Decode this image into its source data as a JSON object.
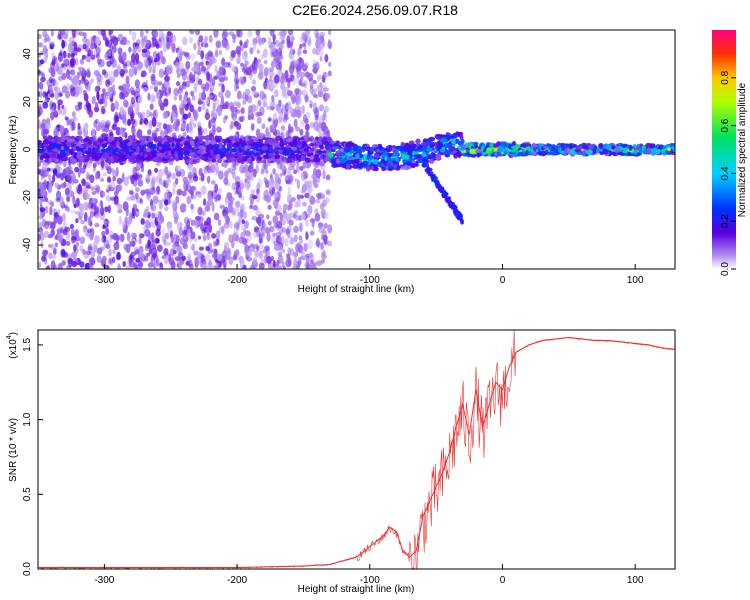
{
  "title": "C2E6.2024.256.09.07.R18",
  "colors": {
    "snr_line": "#ee3030",
    "axis": "#000000",
    "background": "#ffffff"
  },
  "chart_data": [
    {
      "type": "heatmap",
      "xlabel": "Height of straight line (km)",
      "ylabel": "Frequency (Hz)",
      "xlim": [
        -350,
        130
      ],
      "ylim": [
        -50,
        50
      ],
      "xticks": [
        -300,
        -200,
        -100,
        0,
        100
      ],
      "yticks": [
        -40,
        -20,
        0,
        20,
        40
      ],
      "colorbar": {
        "label": "Normalized spectral amplitude",
        "range": [
          0,
          1
        ],
        "ticks": [
          "0.0",
          "0.2",
          "0.4",
          "0.6",
          "0.8"
        ],
        "colormap": "rainbow (violet → blue → cyan → green → yellow → red)"
      },
      "features": {
        "noise_region_km": [
          -350,
          -130
        ],
        "main_band_center_hz": 0,
        "secondary_branch": {
          "from": [
            -60,
            -5
          ],
          "to": [
            -30,
            -30
          ]
        }
      }
    },
    {
      "type": "line",
      "xlabel": "Height of straight line (km)",
      "ylabel": "SNR (10 * v/v)",
      "yscale_label": "(x10",
      "yscale_exp": "4",
      "xlim": [
        -350,
        130
      ],
      "ylim": [
        0,
        1.6
      ],
      "xticks": [
        -300,
        -200,
        -100,
        0,
        100
      ],
      "yticks": [
        "0.0",
        "0.5",
        "1.0",
        "1.5"
      ],
      "series": [
        {
          "x": [
            -350,
            -300,
            -250,
            -200,
            -150,
            -130,
            -110,
            -100,
            -90,
            -85,
            -80,
            -75,
            -70,
            -65,
            -60,
            -55,
            -50,
            -45,
            -40,
            -35,
            -30,
            -25,
            -20,
            -15,
            -10,
            -5,
            0,
            5,
            10,
            20,
            30,
            40,
            50,
            60,
            70,
            80,
            90,
            100,
            110,
            120,
            130
          ],
          "y": [
            0.01,
            0.01,
            0.01,
            0.01,
            0.02,
            0.03,
            0.08,
            0.15,
            0.22,
            0.28,
            0.25,
            0.12,
            0.08,
            0.12,
            0.35,
            0.45,
            0.55,
            0.65,
            0.78,
            0.95,
            1.1,
            0.9,
            1.2,
            0.95,
            1.1,
            1.25,
            1.2,
            1.35,
            1.45,
            1.5,
            1.53,
            1.54,
            1.55,
            1.54,
            1.53,
            1.53,
            1.52,
            1.51,
            1.5,
            1.48,
            1.47
          ]
        }
      ]
    }
  ]
}
